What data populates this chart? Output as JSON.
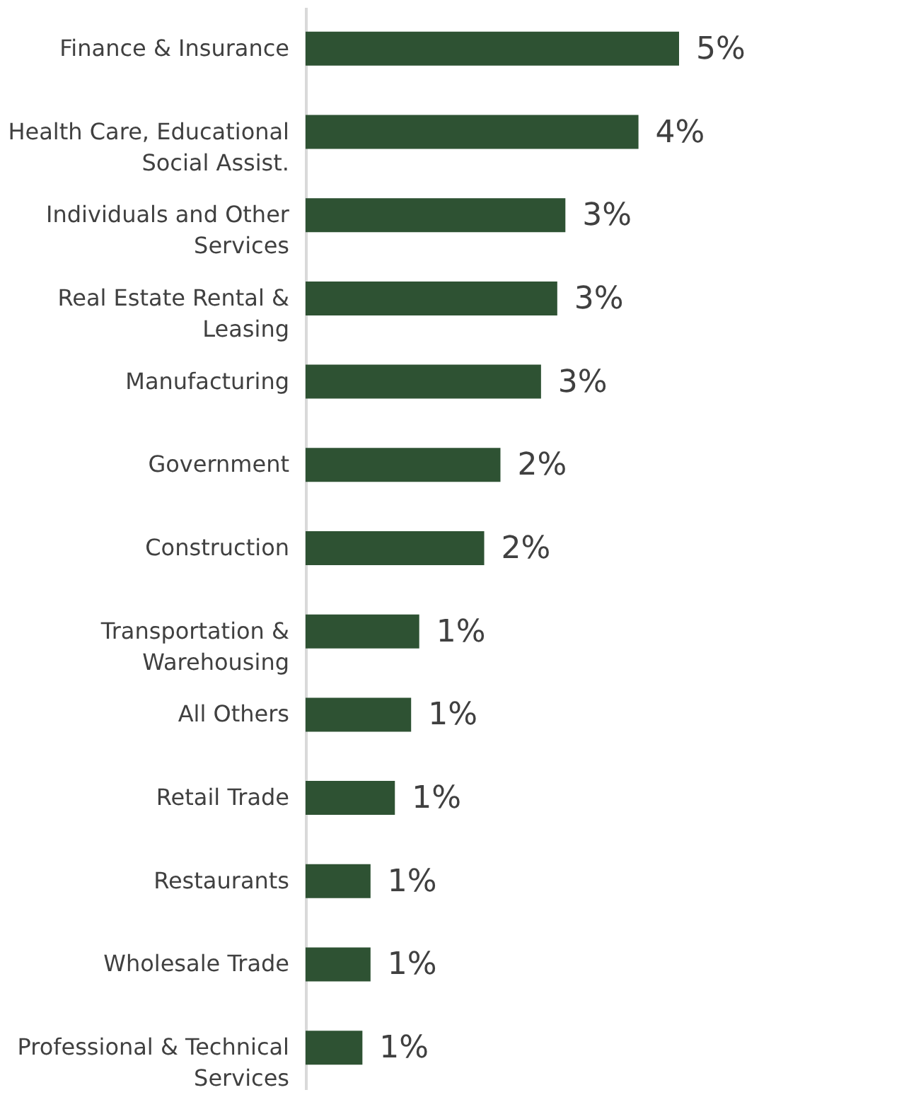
{
  "chart_data": {
    "type": "bar",
    "orientation": "horizontal",
    "categories": [
      "Finance & Insurance",
      "Health Care, Educational Social Assist.",
      "Individuals and Other Services",
      "Real Estate Rental & Leasing",
      "Manufacturing",
      "Government",
      "Construction",
      "Transportation & Warehousing",
      "All Others",
      "Retail Trade",
      "Restaurants",
      "Wholesale Trade",
      "Professional & Technical Services"
    ],
    "values": [
      4.6,
      4.1,
      3.2,
      3.1,
      2.9,
      2.4,
      2.2,
      1.4,
      1.3,
      1.1,
      0.8,
      0.8,
      0.7
    ],
    "value_labels": [
      "5%",
      "4%",
      "3%",
      "3%",
      "3%",
      "2%",
      "2%",
      "1%",
      "1%",
      "1%",
      "1%",
      "1%",
      "1%"
    ],
    "color": "#2e5233",
    "grid": false
  }
}
